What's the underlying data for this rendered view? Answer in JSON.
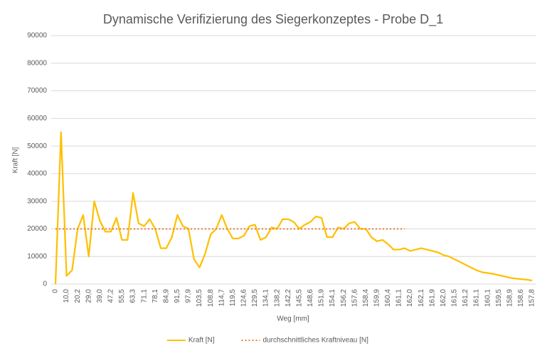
{
  "chart_data": {
    "type": "line",
    "title": "Dynamische Verifizierung des Siegerkonzeptes - Probe D_1",
    "x_label": "Weg [mm]",
    "y_label": "Kraft [N]",
    "categories": [
      "0",
      null,
      "10,0",
      null,
      "20,2",
      null,
      "29,0",
      null,
      "39,0",
      null,
      "47,2",
      null,
      "55,5",
      null,
      "63,3",
      null,
      "71,1",
      null,
      "78,1",
      null,
      "84,9",
      null,
      "91,5",
      null,
      "97,9",
      null,
      "103,5",
      null,
      "108,8",
      null,
      "114,7",
      null,
      "119,5",
      null,
      "124,6",
      null,
      "129,5",
      null,
      "134,1",
      null,
      "138,2",
      null,
      "142,2",
      null,
      "145,5",
      null,
      "148,6",
      null,
      "151,9",
      null,
      "154,1",
      null,
      "156,2",
      null,
      "157,6",
      null,
      "158,4",
      null,
      "159,9",
      null,
      "160,4",
      null,
      "161,1",
      null,
      "162,0",
      null,
      "162,1",
      null,
      "161,9",
      null,
      "162,0",
      null,
      "161,5",
      null,
      "161,2",
      null,
      "161,1",
      null,
      "160,1",
      null,
      "159,5",
      null,
      "158,9",
      null,
      "158,6",
      null,
      "157,8"
    ],
    "series": [
      {
        "name": "Kraft [N]",
        "color": "#ffc000",
        "line_style": "solid",
        "values": [
          0,
          55000,
          3000,
          5000,
          20000,
          25000,
          10000,
          30000,
          23000,
          19000,
          19000,
          24000,
          16000,
          16000,
          33000,
          22000,
          21000,
          23500,
          20000,
          13000,
          13000,
          17000,
          25000,
          21000,
          20000,
          9000,
          6000,
          11000,
          18000,
          20000,
          25000,
          20000,
          16500,
          16500,
          17500,
          21000,
          21500,
          16000,
          17000,
          20500,
          20000,
          23500,
          23500,
          22500,
          20000,
          21500,
          22500,
          24500,
          24000,
          17000,
          17000,
          20500,
          20000,
          22000,
          22500,
          20000,
          20000,
          17000,
          15500,
          16000,
          14500,
          12500,
          12500,
          13000,
          12000,
          12500,
          13000,
          12500,
          12000,
          11500,
          10500,
          10000,
          9000,
          8000,
          7000,
          6000,
          5000,
          4300,
          4000,
          3700,
          3200,
          2800,
          2300,
          2000,
          1800,
          1600,
          1300
        ]
      },
      {
        "name": "durchschnittliches Kraftniveau [N]",
        "color": "#ed7d31",
        "line_style": "dotted",
        "values": [
          20000,
          20000,
          20000,
          20000,
          20000,
          20000,
          20000,
          20000,
          20000,
          20000,
          20000,
          20000,
          20000,
          20000,
          20000,
          20000,
          20000,
          20000,
          20000,
          20000,
          20000,
          20000,
          20000,
          20000,
          20000,
          20000,
          20000,
          20000,
          20000,
          20000,
          20000,
          20000,
          20000,
          20000,
          20000,
          20000,
          20000,
          20000,
          20000,
          20000,
          20000,
          20000,
          20000,
          20000,
          20000,
          20000,
          20000,
          20000,
          20000,
          20000,
          20000,
          20000,
          20000,
          20000,
          20000,
          20000,
          20000,
          20000,
          20000,
          20000,
          20000,
          20000,
          20000,
          20000,
          null,
          null,
          null,
          null,
          null,
          null,
          null,
          null,
          null,
          null,
          null,
          null,
          null,
          null,
          null,
          null,
          null,
          null,
          null,
          null,
          null,
          null,
          null
        ]
      }
    ],
    "ylim": [
      0,
      90000
    ],
    "yticks": [
      0,
      10000,
      20000,
      30000,
      40000,
      50000,
      60000,
      70000,
      80000,
      90000
    ],
    "grid": true,
    "legend": "bottom"
  }
}
